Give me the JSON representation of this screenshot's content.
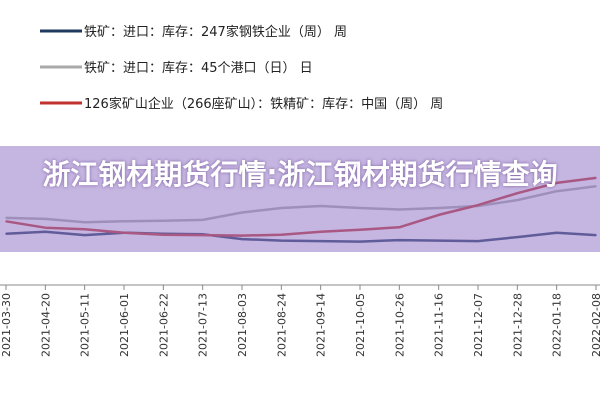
{
  "overlay": {
    "title": "浙江钢材期货行情:浙江钢材期货行情查询"
  },
  "chart_data": {
    "type": "line",
    "categories": [
      "2021-03-30",
      "2021-04-20",
      "2021-05-11",
      "2021-06-01",
      "2021-06-22",
      "2021-07-13",
      "2021-08-03",
      "2021-08-24",
      "2021-09-14",
      "2021-10-05",
      "2021-10-26",
      "2021-11-16",
      "2021-12-07",
      "2021-12-28",
      "2022-01-18",
      "2022-02-08"
    ],
    "series": [
      {
        "name": "铁矿：进口：库存：247家钢铁企业（周） 周",
        "color": "#1f3a5f",
        "values": [
          10.0,
          10.4,
          9.7,
          10.2,
          10.0,
          9.9,
          8.9,
          8.6,
          8.5,
          8.4,
          8.7,
          8.6,
          8.5,
          9.3,
          10.2,
          9.7
        ]
      },
      {
        "name": "铁矿：进口：库存：45个港口（日） 日",
        "color": "#a9a9a9",
        "values": [
          13.2,
          13.0,
          12.3,
          12.5,
          12.6,
          12.8,
          14.3,
          15.2,
          15.6,
          15.2,
          14.9,
          15.2,
          15.6,
          16.8,
          18.6,
          19.6
        ]
      },
      {
        "name": "126家矿山企业（266座矿山）：铁精矿：库存：中国（周） 周",
        "color": "#c0312f",
        "values": [
          12.5,
          11.2,
          10.9,
          10.2,
          9.8,
          9.7,
          9.6,
          9.8,
          10.4,
          10.8,
          11.3,
          13.8,
          15.8,
          18.2,
          20.3,
          21.3
        ]
      }
    ],
    "ylim": [
      0,
      30
    ],
    "grid": false,
    "legend": "top-left"
  }
}
